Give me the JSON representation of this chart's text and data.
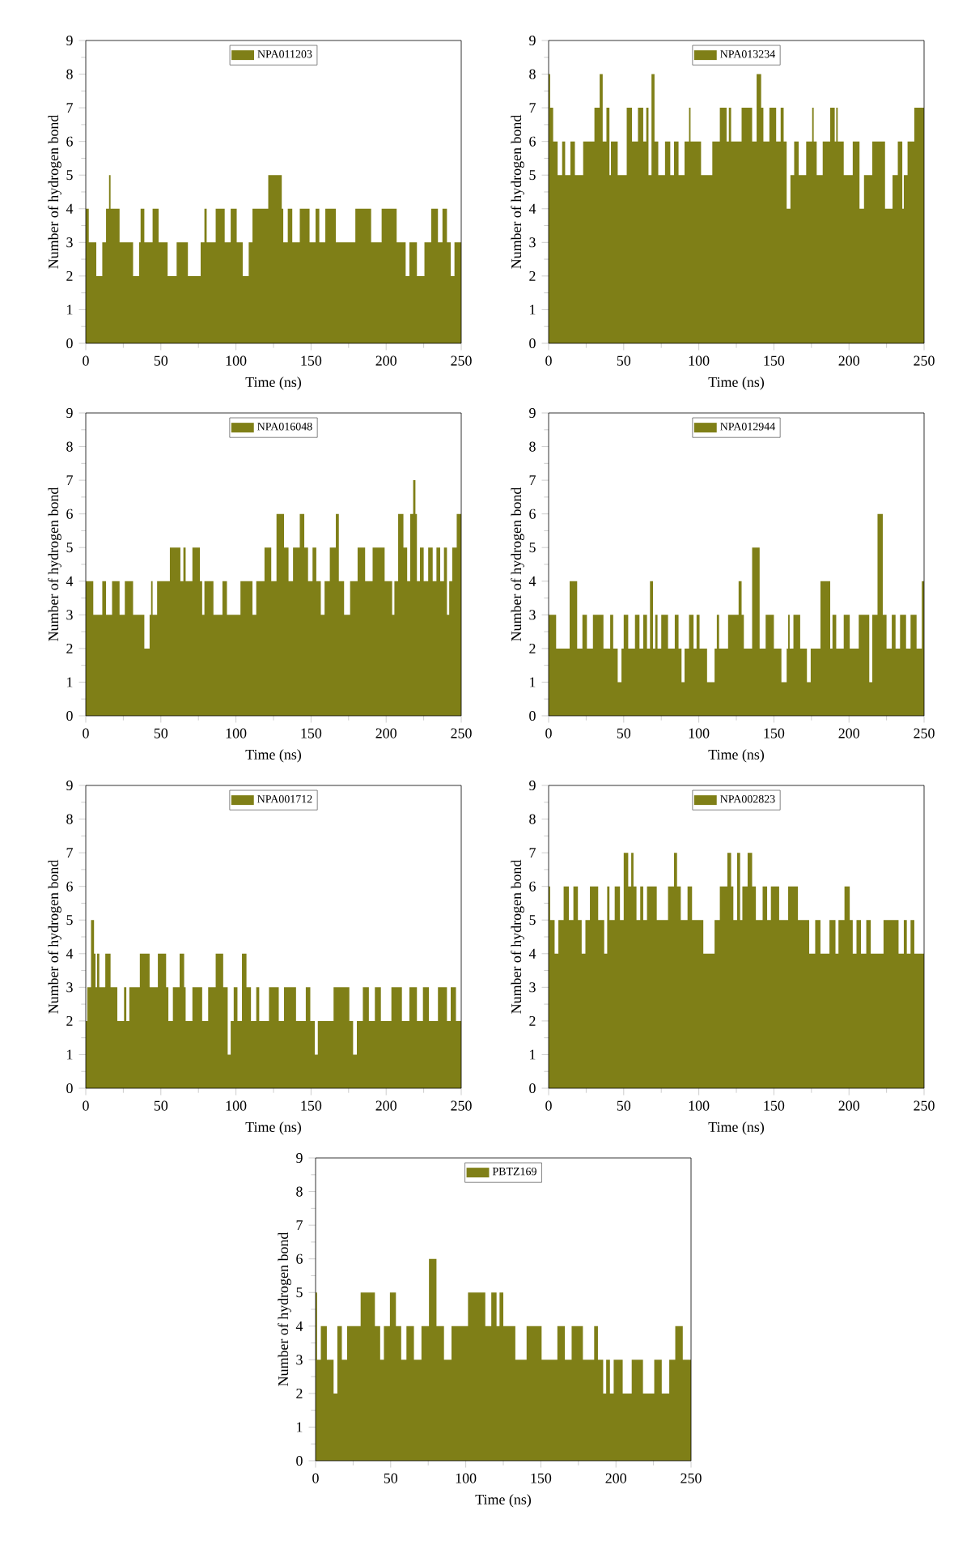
{
  "chart_data": [
    {
      "type": "area",
      "xlabel": "Time (ns)",
      "ylabel": "Number of hydrogen bond",
      "xlim": [
        0,
        250
      ],
      "ylim": [
        0,
        9
      ],
      "xticks": [
        0,
        50,
        100,
        150,
        200,
        250
      ],
      "yticks": [
        0,
        1,
        2,
        3,
        4,
        5,
        6,
        7,
        8,
        9
      ],
      "legend": "top",
      "grid": false,
      "series": [
        {
          "name": "NPA011203",
          "color": "#7f7f17",
          "x": [
            0,
            4,
            10,
            12,
            15,
            16,
            17,
            28,
            35,
            36,
            37,
            41,
            48,
            49,
            60,
            61,
            75,
            78,
            80,
            81,
            92,
            93,
            100,
            101,
            108,
            109,
            113,
            130,
            131,
            132,
            137,
            138,
            147,
            151,
            155,
            156,
            163,
            170,
            189,
            191,
            203,
            211,
            215,
            216,
            225,
            226,
            234,
            235,
            240,
            241,
            245,
            246,
            250
          ],
          "values": [
            4,
            3,
            2,
            3,
            4,
            5,
            4,
            3,
            2,
            3,
            4,
            3,
            4,
            3,
            2,
            3,
            2,
            3,
            4,
            3,
            4,
            3,
            4,
            3,
            2,
            3,
            4,
            5,
            4,
            3,
            4,
            3,
            4,
            3,
            4,
            3,
            4,
            3,
            4,
            3,
            4,
            3,
            2,
            3,
            2,
            3,
            4,
            3,
            4,
            3,
            2,
            3,
            3
          ]
        }
      ]
    },
    {
      "type": "area",
      "xlabel": "Time (ns)",
      "ylabel": "Number of hydrogen bond",
      "xlim": [
        0,
        250
      ],
      "ylim": [
        0,
        9
      ],
      "xticks": [
        0,
        50,
        100,
        150,
        200,
        250
      ],
      "yticks": [
        0,
        1,
        2,
        3,
        4,
        5,
        6,
        7,
        8,
        9
      ],
      "legend": "top",
      "grid": false,
      "series": [
        {
          "name": "NPA013234",
          "color": "#7f7f17",
          "x": [
            0,
            2,
            4,
            8,
            10,
            12,
            17,
            18,
            28,
            33,
            35,
            37,
            40,
            41,
            42,
            50,
            54,
            57,
            62,
            64,
            66,
            67,
            70,
            71,
            75,
            80,
            82,
            85,
            88,
            93,
            94,
            95,
            108,
            110,
            118,
            119,
            121,
            122,
            135,
            136,
            141,
            142,
            144,
            150,
            153,
            156,
            157,
            160,
            162,
            165,
            168,
            175,
            176,
            177,
            180,
            185,
            190,
            191,
            192,
            193,
            200,
            205,
            209,
            211,
            220,
            228,
            230,
            235,
            236,
            237,
            241,
            246,
            250
          ],
          "values": [
            8,
            7,
            6,
            5,
            6,
            5,
            6,
            5,
            6,
            7,
            8,
            6,
            7,
            5,
            6,
            5,
            7,
            6,
            7,
            6,
            7,
            5,
            8,
            6,
            5,
            6,
            5,
            6,
            5,
            6,
            7,
            6,
            5,
            6,
            7,
            6,
            7,
            6,
            7,
            6,
            8,
            7,
            6,
            7,
            6,
            7,
            6,
            4,
            5,
            6,
            5,
            6,
            7,
            6,
            5,
            6,
            7,
            6,
            7,
            6,
            5,
            6,
            4,
            5,
            6,
            4,
            5,
            6,
            4,
            5,
            6,
            7,
            7
          ]
        }
      ]
    },
    {
      "type": "area",
      "xlabel": "Time (ns)",
      "ylabel": "Number of hydrogen bond",
      "xlim": [
        0,
        250
      ],
      "ylim": [
        0,
        9
      ],
      "xticks": [
        0,
        50,
        100,
        150,
        200,
        250
      ],
      "yticks": [
        0,
        1,
        2,
        3,
        4,
        5,
        6,
        7,
        8,
        9
      ],
      "legend": "top",
      "grid": false,
      "series": [
        {
          "name": "NPA016048",
          "color": "#7f7f17",
          "x": [
            0,
            10,
            12,
            15,
            20,
            25,
            27,
            36,
            42,
            43,
            44,
            45,
            50,
            62,
            64,
            66,
            67,
            75,
            77,
            78,
            80,
            90,
            92,
            96,
            110,
            112,
            115,
            123,
            124,
            130,
            134,
            136,
            140,
            145,
            146,
            150,
            152,
            155,
            158,
            160,
            165,
            168,
            169,
            175,
            177,
            185,
            187,
            195,
            203,
            205,
            206,
            210,
            213,
            215,
            217,
            219,
            220,
            221,
            224,
            226,
            230,
            232,
            235,
            237,
            240,
            241,
            243,
            245,
            249,
            250
          ],
          "values": [
            4,
            3,
            4,
            3,
            4,
            3,
            4,
            3,
            2,
            3,
            4,
            3,
            4,
            5,
            4,
            5,
            4,
            5,
            4,
            3,
            4,
            3,
            4,
            3,
            4,
            3,
            4,
            5,
            4,
            6,
            5,
            4,
            5,
            6,
            5,
            4,
            5,
            4,
            3,
            4,
            5,
            6,
            4,
            3,
            4,
            5,
            4,
            5,
            4,
            3,
            4,
            6,
            5,
            4,
            6,
            7,
            6,
            4,
            5,
            4,
            5,
            4,
            5,
            4,
            5,
            3,
            4,
            5,
            6,
            6
          ]
        }
      ]
    },
    {
      "type": "area",
      "xlabel": "Time (ns)",
      "ylabel": "Number of hydrogen bond",
      "xlim": [
        0,
        250
      ],
      "ylim": [
        0,
        9
      ],
      "xticks": [
        0,
        50,
        100,
        150,
        200,
        250
      ],
      "yticks": [
        0,
        1,
        2,
        3,
        4,
        5,
        6,
        7,
        8,
        9
      ],
      "legend": "top",
      "grid": false,
      "series": [
        {
          "name": "NPA012944",
          "color": "#7f7f17",
          "x": [
            0,
            10,
            18,
            20,
            25,
            26,
            33,
            40,
            42,
            44,
            48,
            49,
            51,
            55,
            60,
            61,
            65,
            66,
            69,
            70,
            72,
            73,
            77,
            82,
            86,
            87,
            90,
            91,
            96,
            97,
            100,
            101,
            110,
            111,
            113,
            114,
            125,
            128,
            129,
            131,
            140,
            141,
            148,
            152,
            158,
            159,
            160,
            161,
            165,
            170,
            174,
            175,
            187,
            188,
            190,
            193,
            200,
            201,
            212,
            215,
            216,
            222,
            223,
            227,
            230,
            232,
            236,
            240,
            242,
            248,
            249,
            250
          ],
          "values": [
            3,
            2,
            4,
            2,
            3,
            2,
            3,
            2,
            3,
            2,
            1,
            2,
            3,
            2,
            3,
            2,
            3,
            2,
            4,
            2,
            3,
            2,
            3,
            2,
            3,
            2,
            1,
            2,
            3,
            2,
            3,
            2,
            1,
            2,
            3,
            2,
            3,
            4,
            3,
            2,
            5,
            2,
            3,
            2,
            1,
            2,
            3,
            2,
            3,
            2,
            1,
            2,
            4,
            2,
            3,
            2,
            3,
            2,
            3,
            1,
            3,
            6,
            3,
            2,
            3,
            2,
            3,
            2,
            3,
            2,
            4,
            4
          ]
        }
      ]
    },
    {
      "type": "area",
      "xlabel": "Time (ns)",
      "ylabel": "Number of hydrogen bond",
      "xlim": [
        0,
        250
      ],
      "ylim": [
        0,
        9
      ],
      "xticks": [
        0,
        50,
        100,
        150,
        200,
        250
      ],
      "yticks": [
        0,
        1,
        2,
        3,
        4,
        5,
        6,
        7,
        8,
        9
      ],
      "legend": "top",
      "grid": false,
      "series": [
        {
          "name": "NPA001712",
          "color": "#7f7f17",
          "x": [
            0,
            2,
            5,
            6,
            7,
            8,
            10,
            16,
            17,
            25,
            26,
            28,
            30,
            42,
            43,
            53,
            54,
            56,
            60,
            65,
            66,
            67,
            75,
            80,
            83,
            90,
            93,
            96,
            97,
            100,
            102,
            106,
            108,
            112,
            115,
            116,
            128,
            129,
            135,
            145,
            148,
            151,
            154,
            155,
            175,
            176,
            180,
            181,
            188,
            189,
            196,
            197,
            210,
            211,
            220,
            221,
            228,
            229,
            240,
            241,
            245,
            248,
            250
          ],
          "values": [
            2,
            3,
            5,
            4,
            3,
            4,
            3,
            4,
            3,
            2,
            3,
            2,
            3,
            4,
            3,
            4,
            3,
            2,
            3,
            4,
            3,
            2,
            3,
            2,
            3,
            4,
            3,
            1,
            2,
            3,
            2,
            4,
            3,
            2,
            3,
            2,
            3,
            2,
            3,
            2,
            3,
            2,
            1,
            2,
            3,
            2,
            1,
            2,
            3,
            2,
            3,
            2,
            3,
            2,
            3,
            2,
            3,
            2,
            3,
            2,
            3,
            2,
            2
          ]
        }
      ]
    },
    {
      "type": "area",
      "xlabel": "Time (ns)",
      "ylabel": "Number of hydrogen bond",
      "xlim": [
        0,
        250
      ],
      "ylim": [
        0,
        9
      ],
      "xticks": [
        0,
        50,
        100,
        150,
        200,
        250
      ],
      "yticks": [
        0,
        1,
        2,
        3,
        4,
        5,
        6,
        7,
        8,
        9
      ],
      "legend": "top",
      "grid": false,
      "series": [
        {
          "name": "NPA002823",
          "color": "#7f7f17",
          "x": [
            0,
            2,
            6,
            7,
            13,
            14,
            19,
            20,
            24,
            25,
            30,
            36,
            38,
            40,
            41,
            47,
            48,
            52,
            54,
            56,
            57,
            60,
            62,
            64,
            67,
            77,
            82,
            85,
            86,
            90,
            95,
            96,
            110,
            111,
            117,
            121,
            122,
            124,
            127,
            128,
            130,
            135,
            136,
            140,
            145,
            146,
            150,
            157,
            162,
            170,
            177,
            178,
            184,
            190,
            192,
            194,
            200,
            201,
            204,
            206,
            210,
            213,
            216,
            230,
            236,
            237,
            240,
            242,
            245,
            250
          ],
          "values": [
            6,
            5,
            4,
            5,
            6,
            5,
            6,
            5,
            4,
            5,
            6,
            5,
            4,
            6,
            5,
            6,
            5,
            7,
            6,
            7,
            6,
            5,
            6,
            5,
            6,
            5,
            6,
            7,
            6,
            5,
            6,
            5,
            4,
            5,
            6,
            7,
            6,
            5,
            7,
            5,
            6,
            7,
            6,
            5,
            6,
            5,
            6,
            5,
            6,
            5,
            4,
            5,
            4,
            5,
            4,
            5,
            6,
            5,
            4,
            5,
            4,
            5,
            4,
            5,
            4,
            5,
            4,
            5,
            4,
            4
          ]
        }
      ]
    },
    {
      "type": "area",
      "xlabel": "Time (ns)",
      "ylabel": "Number of hydrogen bond",
      "xlim": [
        0,
        250
      ],
      "ylim": [
        0,
        9
      ],
      "xticks": [
        0,
        50,
        100,
        150,
        200,
        250
      ],
      "yticks": [
        0,
        1,
        2,
        3,
        4,
        5,
        6,
        7,
        8,
        9
      ],
      "legend": "top",
      "grid": false,
      "series": [
        {
          "name": "PBTZ169",
          "color": "#7f7f17",
          "x": [
            0,
            2,
            5,
            10,
            14,
            15,
            20,
            22,
            38,
            41,
            45,
            46,
            53,
            54,
            60,
            61,
            70,
            71,
            80,
            81,
            90,
            91,
            112,
            114,
            120,
            121,
            124,
            126,
            140,
            141,
            160,
            162,
            170,
            171,
            185,
            186,
            190,
            193,
            194,
            198,
            199,
            210,
            211,
            225,
            226,
            235,
            236,
            243,
            246,
            250
          ],
          "values": [
            5,
            3,
            4,
            3,
            2,
            4,
            3,
            4,
            5,
            4,
            3,
            4,
            5,
            4,
            3,
            4,
            3,
            4,
            6,
            4,
            3,
            4,
            5,
            4,
            5,
            4,
            5,
            4,
            3,
            4,
            3,
            4,
            3,
            4,
            3,
            4,
            3,
            2,
            3,
            2,
            3,
            2,
            3,
            2,
            3,
            2,
            3,
            4,
            3,
            3
          ]
        }
      ]
    }
  ]
}
